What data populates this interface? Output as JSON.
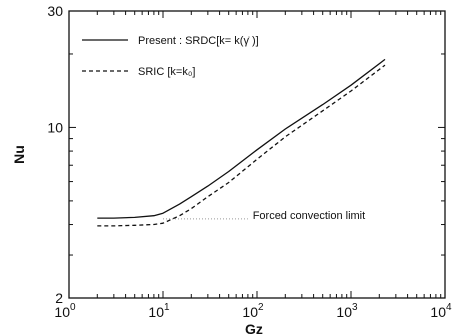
{
  "chart_data": {
    "type": "line",
    "xscale": "log",
    "yscale": "log",
    "xlabel": "Gz",
    "ylabel": "Nu",
    "xlim": [
      1,
      10000
    ],
    "ylim": [
      2,
      30
    ],
    "x_ticks": [
      {
        "value": 1,
        "base": "10",
        "exp": "0"
      },
      {
        "value": 10,
        "base": "10",
        "exp": "1"
      },
      {
        "value": 100,
        "base": "10",
        "exp": "2"
      },
      {
        "value": 1000,
        "base": "10",
        "exp": "3"
      },
      {
        "value": 10000,
        "base": "10",
        "exp": "4"
      }
    ],
    "y_ticks": [
      {
        "value": 2,
        "label": "2"
      },
      {
        "value": 10,
        "label": "10"
      },
      {
        "value": 30,
        "label": "30"
      }
    ],
    "grid": false,
    "legend_position": "top-left",
    "series": [
      {
        "name": "Present : SRDC[k= k(γ̇ )]",
        "style": "solid",
        "color": "#111111",
        "x": [
          2,
          3,
          5,
          8,
          10,
          15,
          20,
          30,
          50,
          100,
          200,
          500,
          1000,
          2300
        ],
        "y": [
          4.25,
          4.25,
          4.28,
          4.35,
          4.45,
          4.85,
          5.2,
          5.75,
          6.6,
          8.1,
          9.85,
          12.4,
          14.9,
          19.0
        ]
      },
      {
        "name": "SRIC [k=k₀]",
        "style": "dashed",
        "color": "#111111",
        "x": [
          2,
          3,
          5,
          8,
          10,
          15,
          20,
          30,
          50,
          100,
          200,
          500,
          1000,
          2300
        ],
        "y": [
          3.95,
          3.95,
          3.97,
          4.0,
          4.05,
          4.35,
          4.65,
          5.2,
          5.95,
          7.4,
          9.15,
          11.7,
          14.1,
          18.0
        ]
      }
    ],
    "annotations": [
      {
        "text": "Forced convection limit",
        "x": 90,
        "y": 4.3
      }
    ]
  }
}
